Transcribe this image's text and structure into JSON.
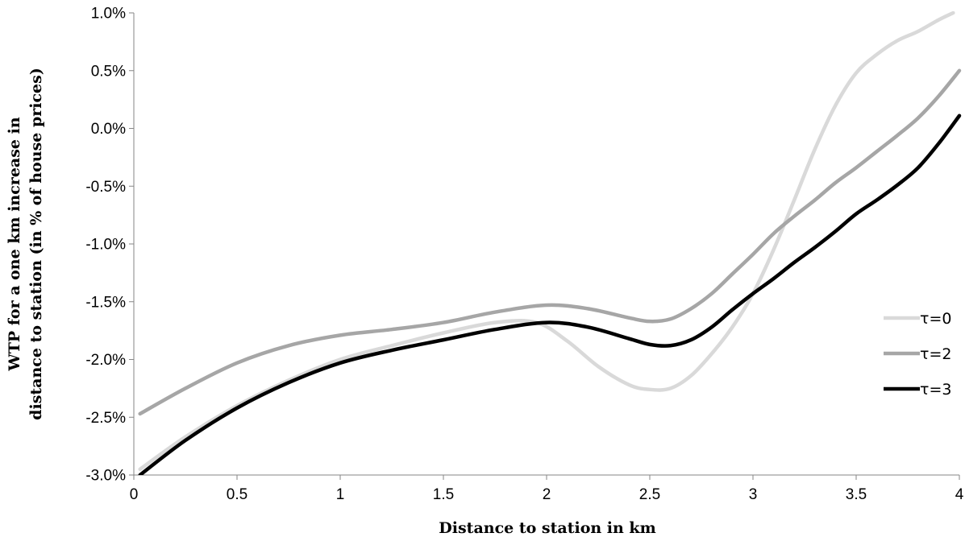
{
  "chart_data": {
    "type": "line",
    "title": "",
    "xlabel": "Distance to station in km",
    "ylabel": "WTP for a one km increase in distance to station (in % of house prices)",
    "ylabel_lines": [
      "WTP for a one km increase in",
      "distance to station (in % of house prices)"
    ],
    "xlim": [
      0,
      4
    ],
    "ylim": [
      -3.0,
      1.0
    ],
    "x_ticks": [
      0,
      0.5,
      1,
      1.5,
      2,
      2.5,
      3,
      3.5,
      4
    ],
    "x_tick_labels": [
      "0",
      "0.5",
      "1",
      "1.5",
      "2",
      "2.5",
      "3",
      "3.5",
      "4"
    ],
    "y_ticks": [
      -3.0,
      -2.5,
      -2.0,
      -1.5,
      -1.0,
      -0.5,
      0.0,
      0.5,
      1.0
    ],
    "y_tick_labels": [
      "-3.0%",
      "-2.5%",
      "-2.0%",
      "-1.5%",
      "-1.0%",
      "-0.5%",
      "0.0%",
      "0.5%",
      "1.0%"
    ],
    "grid": false,
    "legend_position": "right",
    "series": [
      {
        "name": "τ=0",
        "color": "#d9d9d9",
        "x": [
          0.03,
          0.25,
          0.5,
          0.75,
          1.0,
          1.25,
          1.5,
          1.75,
          1.95,
          2.1,
          2.25,
          2.4,
          2.5,
          2.6,
          2.7,
          2.8,
          2.9,
          3.0,
          3.1,
          3.2,
          3.3,
          3.4,
          3.5,
          3.6,
          3.7,
          3.8,
          3.9,
          3.97
        ],
        "y": [
          -2.95,
          -2.67,
          -2.4,
          -2.18,
          -2.0,
          -1.88,
          -1.77,
          -1.68,
          -1.68,
          -1.84,
          -2.06,
          -2.22,
          -2.26,
          -2.25,
          -2.14,
          -1.95,
          -1.72,
          -1.43,
          -1.05,
          -0.62,
          -0.18,
          0.2,
          0.48,
          0.64,
          0.76,
          0.84,
          0.94,
          1.0
        ]
      },
      {
        "name": "τ=2",
        "color": "#a6a6a6",
        "x": [
          0.03,
          0.25,
          0.5,
          0.75,
          1.0,
          1.25,
          1.5,
          1.75,
          2.0,
          2.2,
          2.4,
          2.5,
          2.6,
          2.7,
          2.8,
          2.9,
          3.0,
          3.1,
          3.2,
          3.3,
          3.4,
          3.5,
          3.6,
          3.7,
          3.8,
          3.9,
          4.0
        ],
        "y": [
          -2.47,
          -2.25,
          -2.03,
          -1.88,
          -1.79,
          -1.74,
          -1.68,
          -1.59,
          -1.53,
          -1.56,
          -1.64,
          -1.67,
          -1.65,
          -1.56,
          -1.43,
          -1.26,
          -1.09,
          -0.91,
          -0.76,
          -0.62,
          -0.47,
          -0.34,
          -0.2,
          -0.06,
          0.09,
          0.28,
          0.5
        ]
      },
      {
        "name": "τ=3",
        "color": "#000000",
        "x": [
          0.03,
          0.25,
          0.5,
          0.75,
          1.0,
          1.25,
          1.5,
          1.75,
          2.0,
          2.2,
          2.4,
          2.5,
          2.6,
          2.7,
          2.8,
          2.9,
          3.0,
          3.1,
          3.2,
          3.3,
          3.4,
          3.5,
          3.6,
          3.7,
          3.8,
          3.9,
          4.0
        ],
        "y": [
          -3.0,
          -2.7,
          -2.42,
          -2.2,
          -2.03,
          -1.92,
          -1.83,
          -1.74,
          -1.68,
          -1.72,
          -1.82,
          -1.87,
          -1.88,
          -1.83,
          -1.72,
          -1.57,
          -1.43,
          -1.3,
          -1.16,
          -1.03,
          -0.89,
          -0.74,
          -0.62,
          -0.49,
          -0.34,
          -0.13,
          0.11
        ]
      }
    ]
  }
}
